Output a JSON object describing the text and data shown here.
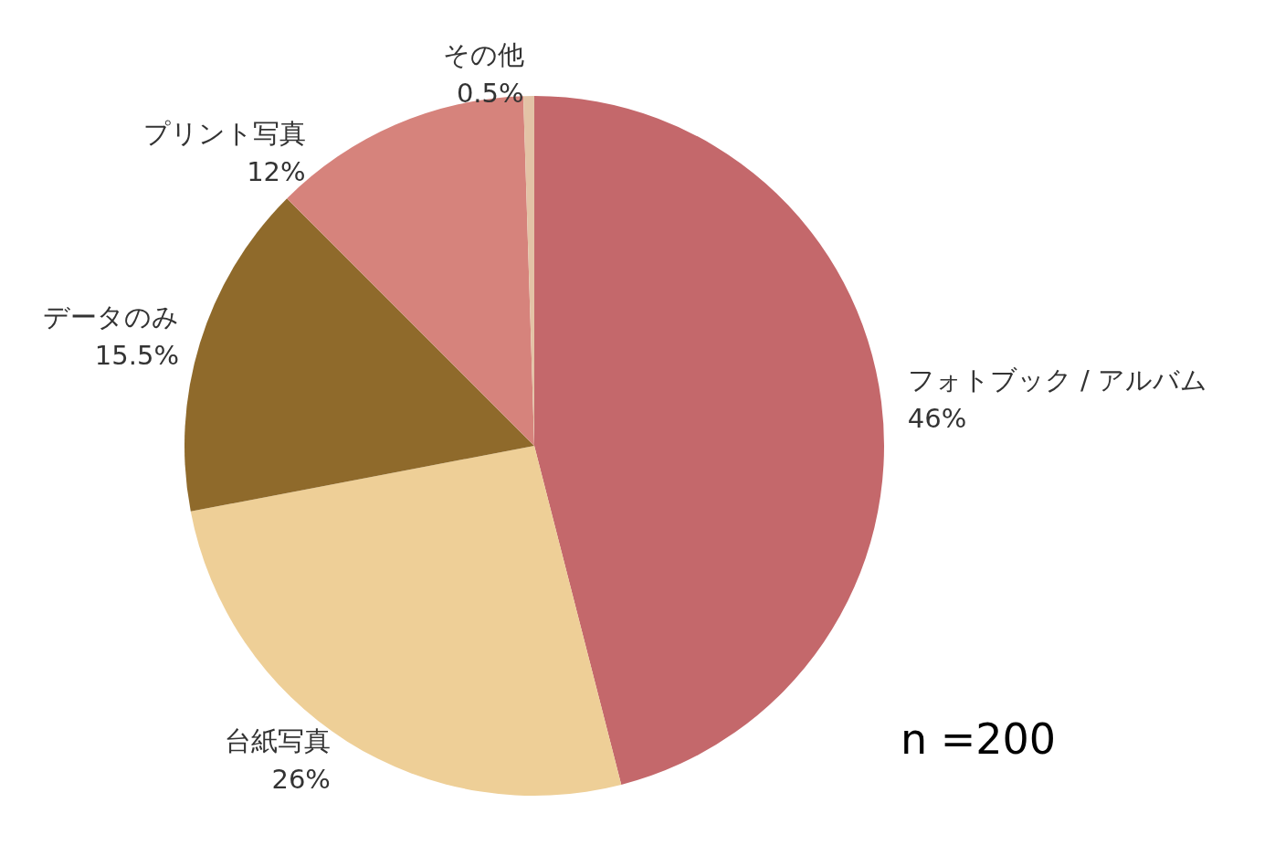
{
  "chart_data": {
    "type": "pie",
    "categories": [
      "フォトブック / アルバム",
      "台紙写真",
      "データのみ",
      "プリント写真",
      "その他"
    ],
    "values": [
      46,
      26,
      15.5,
      12,
      0.5
    ],
    "value_labels": [
      "46%",
      "26%",
      "15.5%",
      "12%",
      "0.5%"
    ],
    "colors": [
      "#c4686b",
      "#eecf97",
      "#8f6a2b",
      "#d6837c",
      "#e3c3a6"
    ],
    "annotations": [
      "n =200"
    ],
    "legend": false
  }
}
